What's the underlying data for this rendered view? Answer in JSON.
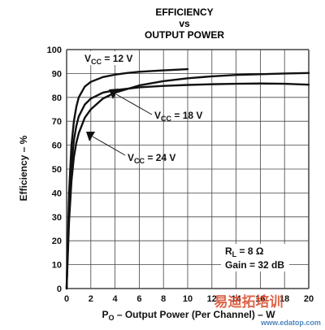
{
  "chart_data": {
    "type": "line",
    "title_lines": [
      "EFFICIENCY",
      "vs",
      "OUTPUT POWER"
    ],
    "xlabel": "P",
    "xlabel_sub": "O",
    "xlabel_rest": " – Output Power (Per Channel) – W",
    "ylabel": "Efficiency – %",
    "xlim": [
      0,
      20
    ],
    "ylim": [
      0,
      100
    ],
    "xticks": [
      "0",
      "2",
      "4",
      "6",
      "8",
      "10",
      "12",
      "14",
      "16",
      "18",
      "20"
    ],
    "yticks": [
      "0",
      "10",
      "20",
      "30",
      "40",
      "50",
      "60",
      "70",
      "80",
      "90",
      "100"
    ],
    "grid": true,
    "series": [
      {
        "name": "VCC = 12 V",
        "x": [
          0,
          0.2,
          0.4,
          0.6,
          0.8,
          1,
          1.5,
          2,
          3,
          4,
          5,
          6,
          8,
          10
        ],
        "y": [
          0,
          40,
          60,
          70,
          76,
          80,
          84.5,
          86.5,
          88.5,
          89.5,
          90.2,
          90.7,
          91.3,
          91.8
        ]
      },
      {
        "name": "VCC = 18 V",
        "x": [
          0,
          0.2,
          0.4,
          0.6,
          0.8,
          1,
          1.5,
          2,
          3,
          4,
          6,
          8,
          10,
          12,
          14,
          16,
          18,
          20
        ],
        "y": [
          0,
          35,
          52,
          62,
          68,
          72,
          77,
          79.5,
          82,
          83,
          84.2,
          84.8,
          85.2,
          85.5,
          85.7,
          85.8,
          85.7,
          85.3
        ]
      },
      {
        "name": "VCC = 24 V",
        "x": [
          0,
          0.2,
          0.4,
          0.6,
          0.8,
          1,
          1.5,
          2,
          3,
          4,
          6,
          8,
          10,
          12,
          14,
          16,
          18,
          20
        ],
        "y": [
          0,
          28,
          45,
          55,
          61,
          65,
          71.5,
          75,
          79.5,
          82,
          85,
          86.8,
          88,
          88.8,
          89.4,
          89.7,
          90,
          90.2
        ]
      }
    ],
    "annotations": {
      "vcc12": {
        "main": "V",
        "sub": "CC",
        "rest": " = 12 V"
      },
      "vcc18": {
        "main": "V",
        "sub": "CC",
        "rest": "  = 18 V"
      },
      "vcc24": {
        "main": "V",
        "sub": "CC",
        "rest": " = 24 V"
      },
      "rl": {
        "main": "R",
        "sub": "L",
        "rest": " = 8 Ω"
      },
      "gain": "Gain = 32 dB"
    }
  },
  "watermark": {
    "text": "易迪拓培训",
    "url": "www.edatop.com"
  }
}
